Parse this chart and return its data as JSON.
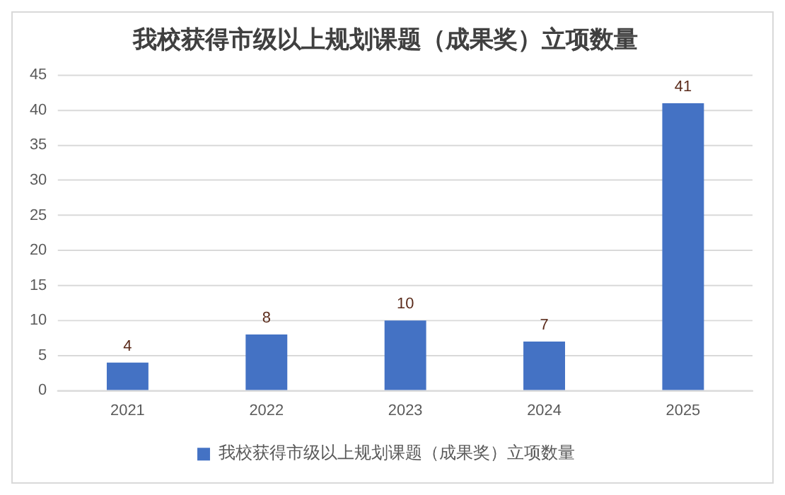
{
  "chart_data": {
    "type": "bar",
    "title": "我校获得市级以上规划课题（成果奖）立项数量",
    "categories": [
      "2021",
      "2022",
      "2023",
      "2024",
      "2025"
    ],
    "series": [
      {
        "name": "我校获得市级以上规划课题（成果奖）立项数量",
        "color": "#4472c4",
        "values": [
          4,
          8,
          10,
          7,
          41
        ]
      }
    ],
    "ylim": [
      0,
      45
    ],
    "yticks": [
      0,
      5,
      10,
      15,
      20,
      25,
      30,
      35,
      40,
      45
    ],
    "grid": "y",
    "legend": "bottom",
    "data_labels": true
  }
}
